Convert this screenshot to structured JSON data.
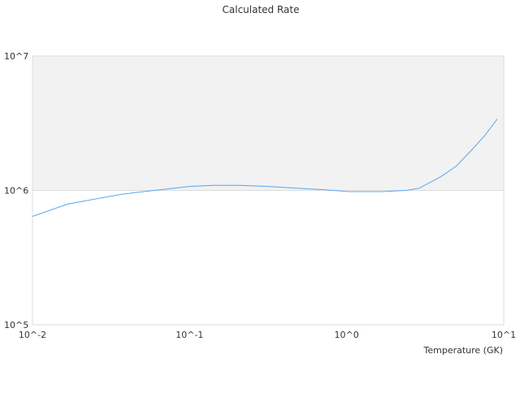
{
  "chart_data": {
    "type": "line",
    "title": "Calculated Rate",
    "xlabel": "Temperature (GK)",
    "ylabel": "",
    "x_scale": "log",
    "y_scale": "log",
    "xlim": [
      0.01,
      10
    ],
    "ylim": [
      100000,
      10000000
    ],
    "x_ticks": [
      {
        "value": 0.01,
        "label": "10^-2"
      },
      {
        "value": 0.1,
        "label": "10^-1"
      },
      {
        "value": 1,
        "label": "10^0"
      },
      {
        "value": 10,
        "label": "10^1"
      }
    ],
    "y_ticks": [
      {
        "value": 100000,
        "label": "10^5"
      },
      {
        "value": 1000000,
        "label": "10^6"
      },
      {
        "value": 10000000,
        "label": "10^7"
      }
    ],
    "grid": true,
    "shaded_band": [
      1000000,
      10000000
    ],
    "colors": {
      "line": "#5aa5f0",
      "band": "#f2f2f2",
      "grid": "#dddddd"
    },
    "series": [
      {
        "x": [
          0.01,
          0.0167,
          0.0357,
          0.047,
          0.1,
          0.142,
          0.208,
          0.316,
          0.73,
          1.04,
          1.67,
          2.4,
          2.9,
          4.0,
          5.0,
          6.4,
          7.6,
          9.1
        ],
        "y": [
          641000,
          790000,
          930000,
          970000,
          1070000,
          1090000,
          1090000,
          1070000,
          1010000,
          980000,
          980000,
          1000000,
          1040000,
          1270000,
          1520000,
          2060000,
          2580000,
          3400000
        ]
      }
    ]
  }
}
